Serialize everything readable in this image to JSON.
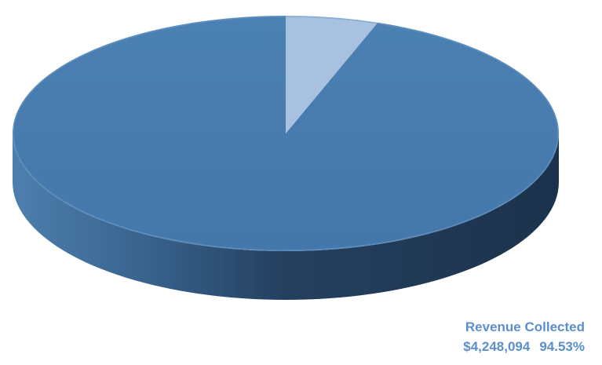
{
  "chart_data": {
    "type": "pie",
    "style": "3d",
    "slices": [
      {
        "label": "Revenue Collected",
        "value": 4248094,
        "value_label": "$4,248,094",
        "percent": 94.53,
        "percent_label": "94.53%",
        "color": "#4a7eb0"
      },
      {
        "label": "",
        "value": null,
        "percent": 5.47,
        "color": "#a9c1e0"
      }
    ],
    "legend": "none"
  }
}
